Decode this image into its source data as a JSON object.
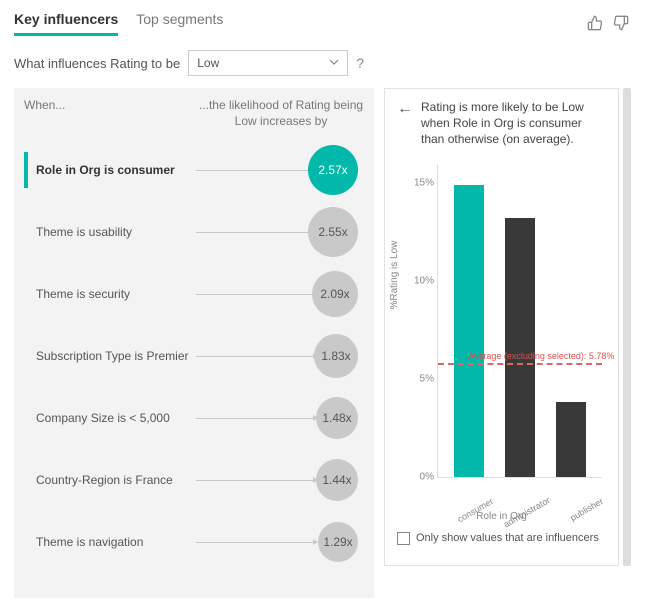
{
  "colors": {
    "accent": "#01b8aa",
    "bubble_default": "#c9c9c9",
    "bubble_selected": "#01b8aa",
    "bubble_text_selected": "#ffffff",
    "bar_selected": "#01b8aa",
    "bar_default": "#393939",
    "avg_line": "#e06666",
    "grid": "#dddddd",
    "panel_bg": "#f3f3f3"
  },
  "header": {
    "tabs": [
      {
        "label": "Key influencers",
        "active": true
      },
      {
        "label": "Top segments",
        "active": false
      }
    ]
  },
  "question": {
    "prefix": "What influences Rating to be",
    "select_value": "Low",
    "hint": "?"
  },
  "left": {
    "col1": "When...",
    "col2": "...the likelihood of Rating being Low increases by",
    "rows": [
      {
        "label": "Role in Org is consumer",
        "value": "2.57x",
        "selected": true,
        "size": 50
      },
      {
        "label": "Theme is usability",
        "value": "2.55x",
        "selected": false,
        "size": 50
      },
      {
        "label": "Theme is security",
        "value": "2.09x",
        "selected": false,
        "size": 46
      },
      {
        "label": "Subscription Type is Premier",
        "value": "1.83x",
        "selected": false,
        "size": 44
      },
      {
        "label": "Company Size is < 5,000",
        "value": "1.48x",
        "selected": false,
        "size": 42
      },
      {
        "label": "Country-Region is France",
        "value": "1.44x",
        "selected": false,
        "size": 42
      },
      {
        "label": "Theme is navigation",
        "value": "1.29x",
        "selected": false,
        "size": 40
      }
    ]
  },
  "right": {
    "insight": "Rating is more likely to be Low when Role in Org is consumer than otherwise (on average).",
    "chart": {
      "type": "bar",
      "ylabel": "%Rating is Low",
      "xlabel": "Role in Org",
      "ymax": 16,
      "yticks": [
        {
          "v": 15,
          "label": "15%"
        },
        {
          "v": 10,
          "label": "10%"
        },
        {
          "v": 5,
          "label": "5%"
        },
        {
          "v": 0,
          "label": "0%"
        }
      ],
      "bars": [
        {
          "label": "consumer",
          "value": 14.9,
          "color": "#01b8aa"
        },
        {
          "label": "administrator",
          "value": 13.2,
          "color": "#393939"
        },
        {
          "label": "publisher",
          "value": 3.8,
          "color": "#393939"
        }
      ],
      "avg": {
        "value": 5.78,
        "label": "Average (excluding selected): 5.78%"
      }
    },
    "checkbox_label": "Only show values that are influencers",
    "checkbox_checked": false
  }
}
